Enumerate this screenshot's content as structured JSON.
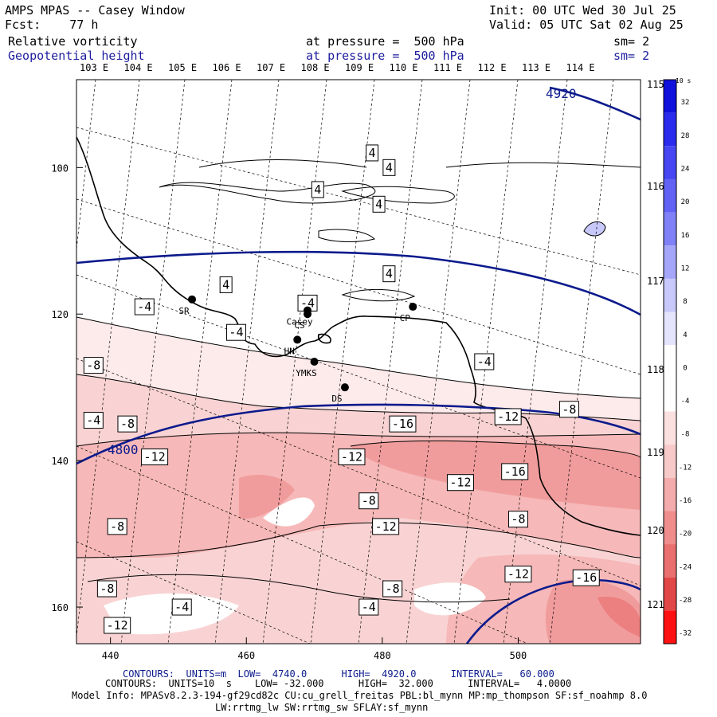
{
  "header": {
    "title": "AMPS MPAS -- Casey Window",
    "fcst": "Fcst:    77 h",
    "init": "Init: 00 UTC Wed 30 Jul 25",
    "valid": "Valid: 05 UTC Sat 02 Aug 25",
    "field1_name": "Relative vorticity",
    "field1_level": "at pressure =  500 hPa",
    "field1_sm": "sm= 2",
    "field2_name": "Geopotential height",
    "field2_level": "at pressure =  500 hPa",
    "field2_sm": "sm= 2"
  },
  "footer": {
    "contours_height": "CONTOURS:  UNITS=m  LOW=  4740.0      HIGH=  4920.0      INTERVAL=   60.000",
    "contours_vort": "CONTOURS:  UNITS=10  s    LOW= -32.000      HIGH=  32.000      INTERVAL=   4.0000",
    "model_info": "Model Info: MPASv8.2.3-194-gf29cd82c CU:cu_grell_freitas PBL:bl_mynn MP:mp_thompson SF:sf_noahmp 8.0",
    "model_info2": "LW:rrtmg_lw SW:rrtmg_sw SFLAY:sf_mynn"
  },
  "colors": {
    "height_contour": "#0b1a8c",
    "coast": "#000000",
    "pos_vort": "#0000ff",
    "neg_vort": "#ff0000"
  },
  "chart_data": {
    "type": "contour map",
    "x_ticks": [
      440,
      460,
      480,
      500
    ],
    "y_ticks": [
      100,
      120,
      140,
      160
    ],
    "x_range": [
      435,
      518
    ],
    "y_range": [
      88,
      165
    ],
    "lon_labels": [
      "103 E",
      "104 E",
      "105 E",
      "106 E",
      "107 E",
      "108 E",
      "109 E",
      "110 E",
      "111 E",
      "112 E",
      "113 E",
      "114 E"
    ],
    "lat_labels": [
      "115 E",
      "116 E",
      "117 E",
      "118 E",
      "119 E",
      "120 E",
      "121 E"
    ],
    "colorbar": {
      "units": "10  s",
      "levels": [
        32,
        28,
        24,
        20,
        16,
        12,
        8,
        4,
        0,
        -4,
        -8,
        -12,
        -16,
        -20,
        -24,
        -28,
        -32
      ],
      "colors": [
        "#1111dd",
        "#2b2bee",
        "#4646f2",
        "#6262f5",
        "#8080f7",
        "#a5a5fa",
        "#c8c8fb",
        "#e4e4fd",
        "#ffffff",
        "#ffffff",
        "#fbe0e0",
        "#f8c9c9",
        "#f4abab",
        "#ef8d8d",
        "#ea6f6f",
        "#e24747",
        "#ff1111"
      ]
    },
    "height_contour_labels": [
      "4920",
      "4800"
    ],
    "vorticity_labels": [
      {
        "text": "4",
        "x": 478.5,
        "y": 98.0
      },
      {
        "text": "4",
        "x": 481.0,
        "y": 100.0
      },
      {
        "text": "4",
        "x": 470.5,
        "y": 103.0
      },
      {
        "text": "4",
        "x": 479.5,
        "y": 105.0
      },
      {
        "text": "4",
        "x": 481.0,
        "y": 114.5
      },
      {
        "text": "4",
        "x": 457.0,
        "y": 116.0
      },
      {
        "text": "-4",
        "x": 445.0,
        "y": 119.0
      },
      {
        "text": "-4",
        "x": 469.0,
        "y": 118.5
      },
      {
        "text": "-4",
        "x": 458.5,
        "y": 122.5
      },
      {
        "text": "-8",
        "x": 437.5,
        "y": 127.0
      },
      {
        "text": "-4",
        "x": 495.0,
        "y": 126.5
      },
      {
        "text": "-8",
        "x": 507.5,
        "y": 133.0
      },
      {
        "text": "-12",
        "x": 498.5,
        "y": 134.0
      },
      {
        "text": "-16",
        "x": 483.0,
        "y": 135.0
      },
      {
        "text": "-4",
        "x": 437.5,
        "y": 134.5
      },
      {
        "text": "-8",
        "x": 442.5,
        "y": 135.0
      },
      {
        "text": "-12",
        "x": 446.5,
        "y": 139.5
      },
      {
        "text": "-12",
        "x": 475.5,
        "y": 139.5
      },
      {
        "text": "-12",
        "x": 491.5,
        "y": 143.0
      },
      {
        "text": "-16",
        "x": 499.5,
        "y": 141.5
      },
      {
        "text": "-8",
        "x": 478.0,
        "y": 145.5
      },
      {
        "text": "-8",
        "x": 441.0,
        "y": 149.0
      },
      {
        "text": "-8",
        "x": 500.0,
        "y": 148.0
      },
      {
        "text": "-12",
        "x": 480.5,
        "y": 149.0
      },
      {
        "text": "-12",
        "x": 500.0,
        "y": 155.5
      },
      {
        "text": "-16",
        "x": 510.0,
        "y": 156.0
      },
      {
        "text": "-8",
        "x": 439.5,
        "y": 157.5
      },
      {
        "text": "-8",
        "x": 481.5,
        "y": 157.5
      },
      {
        "text": "-4",
        "x": 450.5,
        "y": 160.0
      },
      {
        "text": "-4",
        "x": 478.0,
        "y": 160.0
      },
      {
        "text": "-12",
        "x": 441.0,
        "y": 162.5
      }
    ],
    "stations": [
      {
        "name": "SR",
        "x": 452.0,
        "y": 118.0
      },
      {
        "name": "Casey",
        "x": 469.0,
        "y": 119.5
      },
      {
        "name": "CS",
        "x": 469.0,
        "y": 120.0
      },
      {
        "name": "CP",
        "x": 484.5,
        "y": 119.0
      },
      {
        "name": "HN",
        "x": 467.5,
        "y": 123.5
      },
      {
        "name": "YMKS",
        "x": 470.0,
        "y": 126.5
      },
      {
        "name": "DS",
        "x": 474.5,
        "y": 130.0
      }
    ],
    "grid": true
  }
}
